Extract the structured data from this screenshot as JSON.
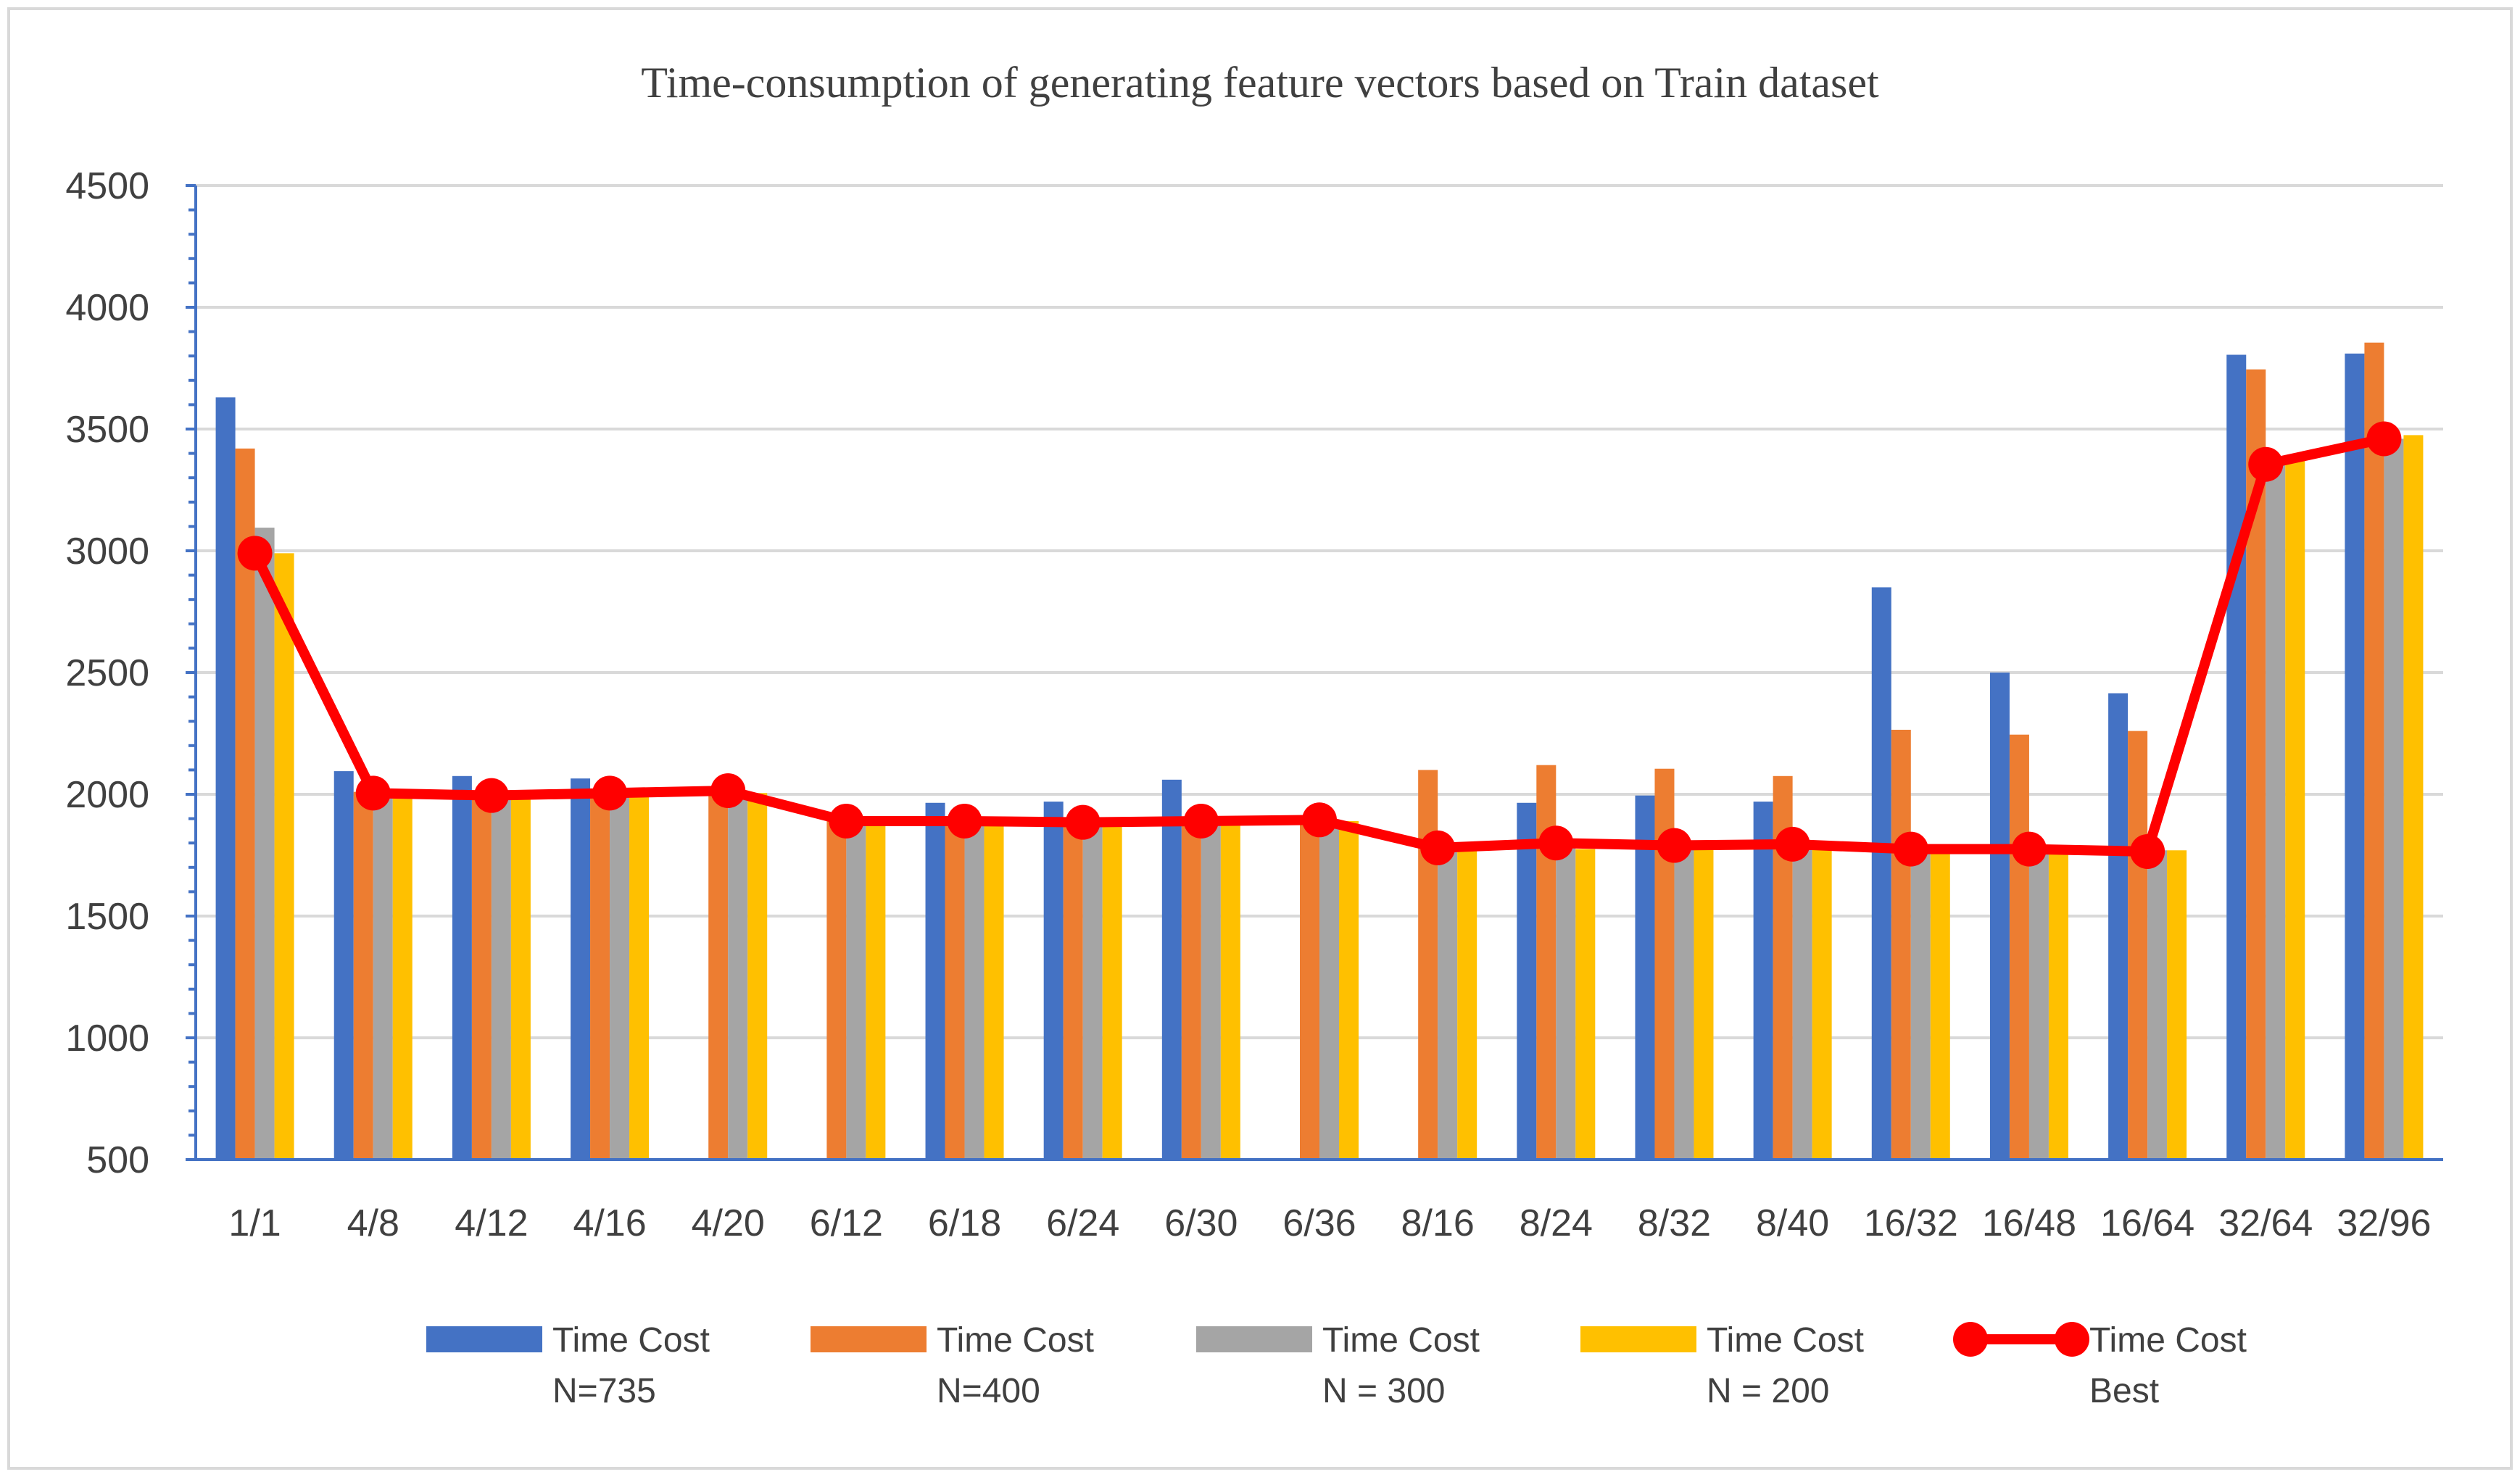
{
  "chart_data": {
    "type": "bar",
    "title": "Time-consumption of generating feature vectors based on Train dataset",
    "xlabel": "",
    "ylabel": "",
    "ylim": [
      500,
      4500
    ],
    "yticks": [
      500,
      1000,
      1500,
      2000,
      2500,
      3000,
      3500,
      4000,
      4500
    ],
    "grid": true,
    "legend_position": "bottom",
    "categories": [
      "1/1",
      "4/8",
      "4/12",
      "4/16",
      "4/20",
      "6/12",
      "6/18",
      "6/24",
      "6/30",
      "6/36",
      "8/16",
      "8/24",
      "8/32",
      "8/40",
      "16/32",
      "16/48",
      "16/64",
      "32/64",
      "32/96"
    ],
    "series": [
      {
        "name": "Time Cost N=735",
        "label_lines": [
          "Time Cost",
          "N=735"
        ],
        "kind": "bar",
        "color": "#4472C4",
        "values": [
          3630,
          2095,
          2075,
          2065,
          null,
          null,
          1965,
          1970,
          2060,
          null,
          null,
          1965,
          1995,
          1970,
          2850,
          2500,
          2415,
          3805,
          3810
        ]
      },
      {
        "name": "Time Cost N=400",
        "label_lines": [
          "Time Cost",
          "N=400"
        ],
        "kind": "bar",
        "color": "#ED7D31",
        "values": [
          3420,
          2010,
          2000,
          2005,
          2015,
          1895,
          1890,
          1890,
          1895,
          1895,
          2100,
          2120,
          2105,
          2075,
          2265,
          2245,
          2260,
          3745,
          3855
        ]
      },
      {
        "name": "Time Cost N = 300",
        "label_lines": [
          "Time Cost",
          "N = 300"
        ],
        "kind": "bar",
        "color": "#A5A5A5",
        "values": [
          3095,
          2005,
          1995,
          2000,
          2010,
          1890,
          1885,
          1885,
          1885,
          1890,
          1785,
          1790,
          1785,
          1790,
          1775,
          1775,
          1770,
          3360,
          3460
        ]
      },
      {
        "name": "Time Cost N = 200",
        "label_lines": [
          "Time Cost",
          "N = 200"
        ],
        "kind": "bar",
        "color": "#FFC000",
        "values": [
          2990,
          2000,
          1995,
          1995,
          2005,
          1885,
          1880,
          1880,
          1880,
          1890,
          1770,
          1775,
          1775,
          1775,
          1765,
          1765,
          1770,
          3375,
          3475
        ]
      },
      {
        "name": "Time Cost Best",
        "label_lines": [
          "Time Cost",
          "Best"
        ],
        "kind": "line",
        "color": "#FF0000",
        "values": [
          2990,
          2005,
          1995,
          2005,
          2015,
          1890,
          1890,
          1885,
          1890,
          1895,
          1780,
          1800,
          1790,
          1795,
          1775,
          1775,
          1765,
          3355,
          3460
        ]
      }
    ]
  }
}
